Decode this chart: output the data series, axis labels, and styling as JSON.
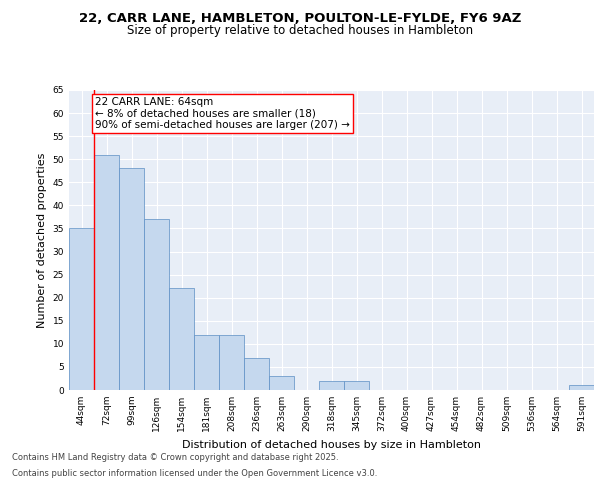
{
  "title_line1": "22, CARR LANE, HAMBLETON, POULTON-LE-FYLDE, FY6 9AZ",
  "title_line2": "Size of property relative to detached houses in Hambleton",
  "xlabel": "Distribution of detached houses by size in Hambleton",
  "ylabel": "Number of detached properties",
  "categories": [
    "44sqm",
    "72sqm",
    "99sqm",
    "126sqm",
    "154sqm",
    "181sqm",
    "208sqm",
    "236sqm",
    "263sqm",
    "290sqm",
    "318sqm",
    "345sqm",
    "372sqm",
    "400sqm",
    "427sqm",
    "454sqm",
    "482sqm",
    "509sqm",
    "536sqm",
    "564sqm",
    "591sqm"
  ],
  "values": [
    35,
    51,
    48,
    37,
    22,
    12,
    12,
    7,
    3,
    0,
    2,
    2,
    0,
    0,
    0,
    0,
    0,
    0,
    0,
    0,
    1
  ],
  "bar_color": "#c5d8ee",
  "bar_edge_color": "#5b8ec4",
  "annotation_text": "22 CARR LANE: 64sqm\n← 8% of detached houses are smaller (18)\n90% of semi-detached houses are larger (207) →",
  "annotation_box_color": "white",
  "annotation_box_edge": "red",
  "ylim": [
    0,
    65
  ],
  "yticks": [
    0,
    5,
    10,
    15,
    20,
    25,
    30,
    35,
    40,
    45,
    50,
    55,
    60,
    65
  ],
  "bg_color": "#e8eef7",
  "grid_color": "white",
  "footer_line1": "Contains HM Land Registry data © Crown copyright and database right 2025.",
  "footer_line2": "Contains public sector information licensed under the Open Government Licence v3.0.",
  "title_fontsize": 9.5,
  "subtitle_fontsize": 8.5,
  "axis_label_fontsize": 8,
  "tick_fontsize": 6.5,
  "annotation_fontsize": 7.5,
  "footer_fontsize": 6.0
}
